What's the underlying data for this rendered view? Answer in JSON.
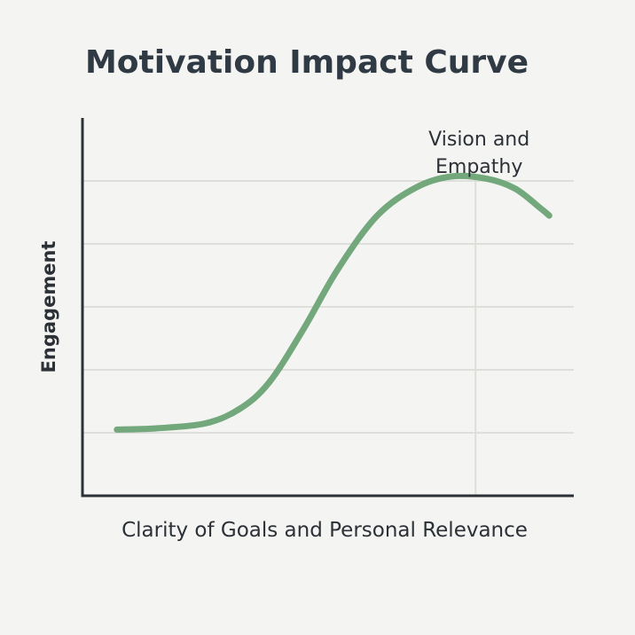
{
  "chart_data": {
    "type": "line",
    "title": "Motivation Impact Curve",
    "xlabel": "Clarity of Goals and Personal Relevance",
    "ylabel": "Engagement",
    "xlim": [
      0,
      10
    ],
    "ylim": [
      0,
      6
    ],
    "grid": true,
    "series": [
      {
        "color": "#72a87c",
        "x": [
          0.7,
          1.5,
          2.5,
          3.2,
          3.8,
          4.5,
          5.2,
          6.0,
          6.8,
          7.5,
          8.2,
          8.8,
          9.3,
          9.5
        ],
        "y": [
          1.05,
          1.07,
          1.15,
          1.38,
          1.8,
          2.65,
          3.6,
          4.45,
          4.9,
          5.07,
          5.04,
          4.88,
          4.58,
          4.45
        ]
      }
    ],
    "annotations": [
      {
        "lines": [
          "Vision and",
          "Empathy"
        ],
        "x": 8.0,
        "y": 5.07
      }
    ]
  },
  "colors": {
    "background": "#f4f4f2",
    "axis": "#2b3136",
    "grid": "#dededb",
    "line": "#72a87c"
  }
}
